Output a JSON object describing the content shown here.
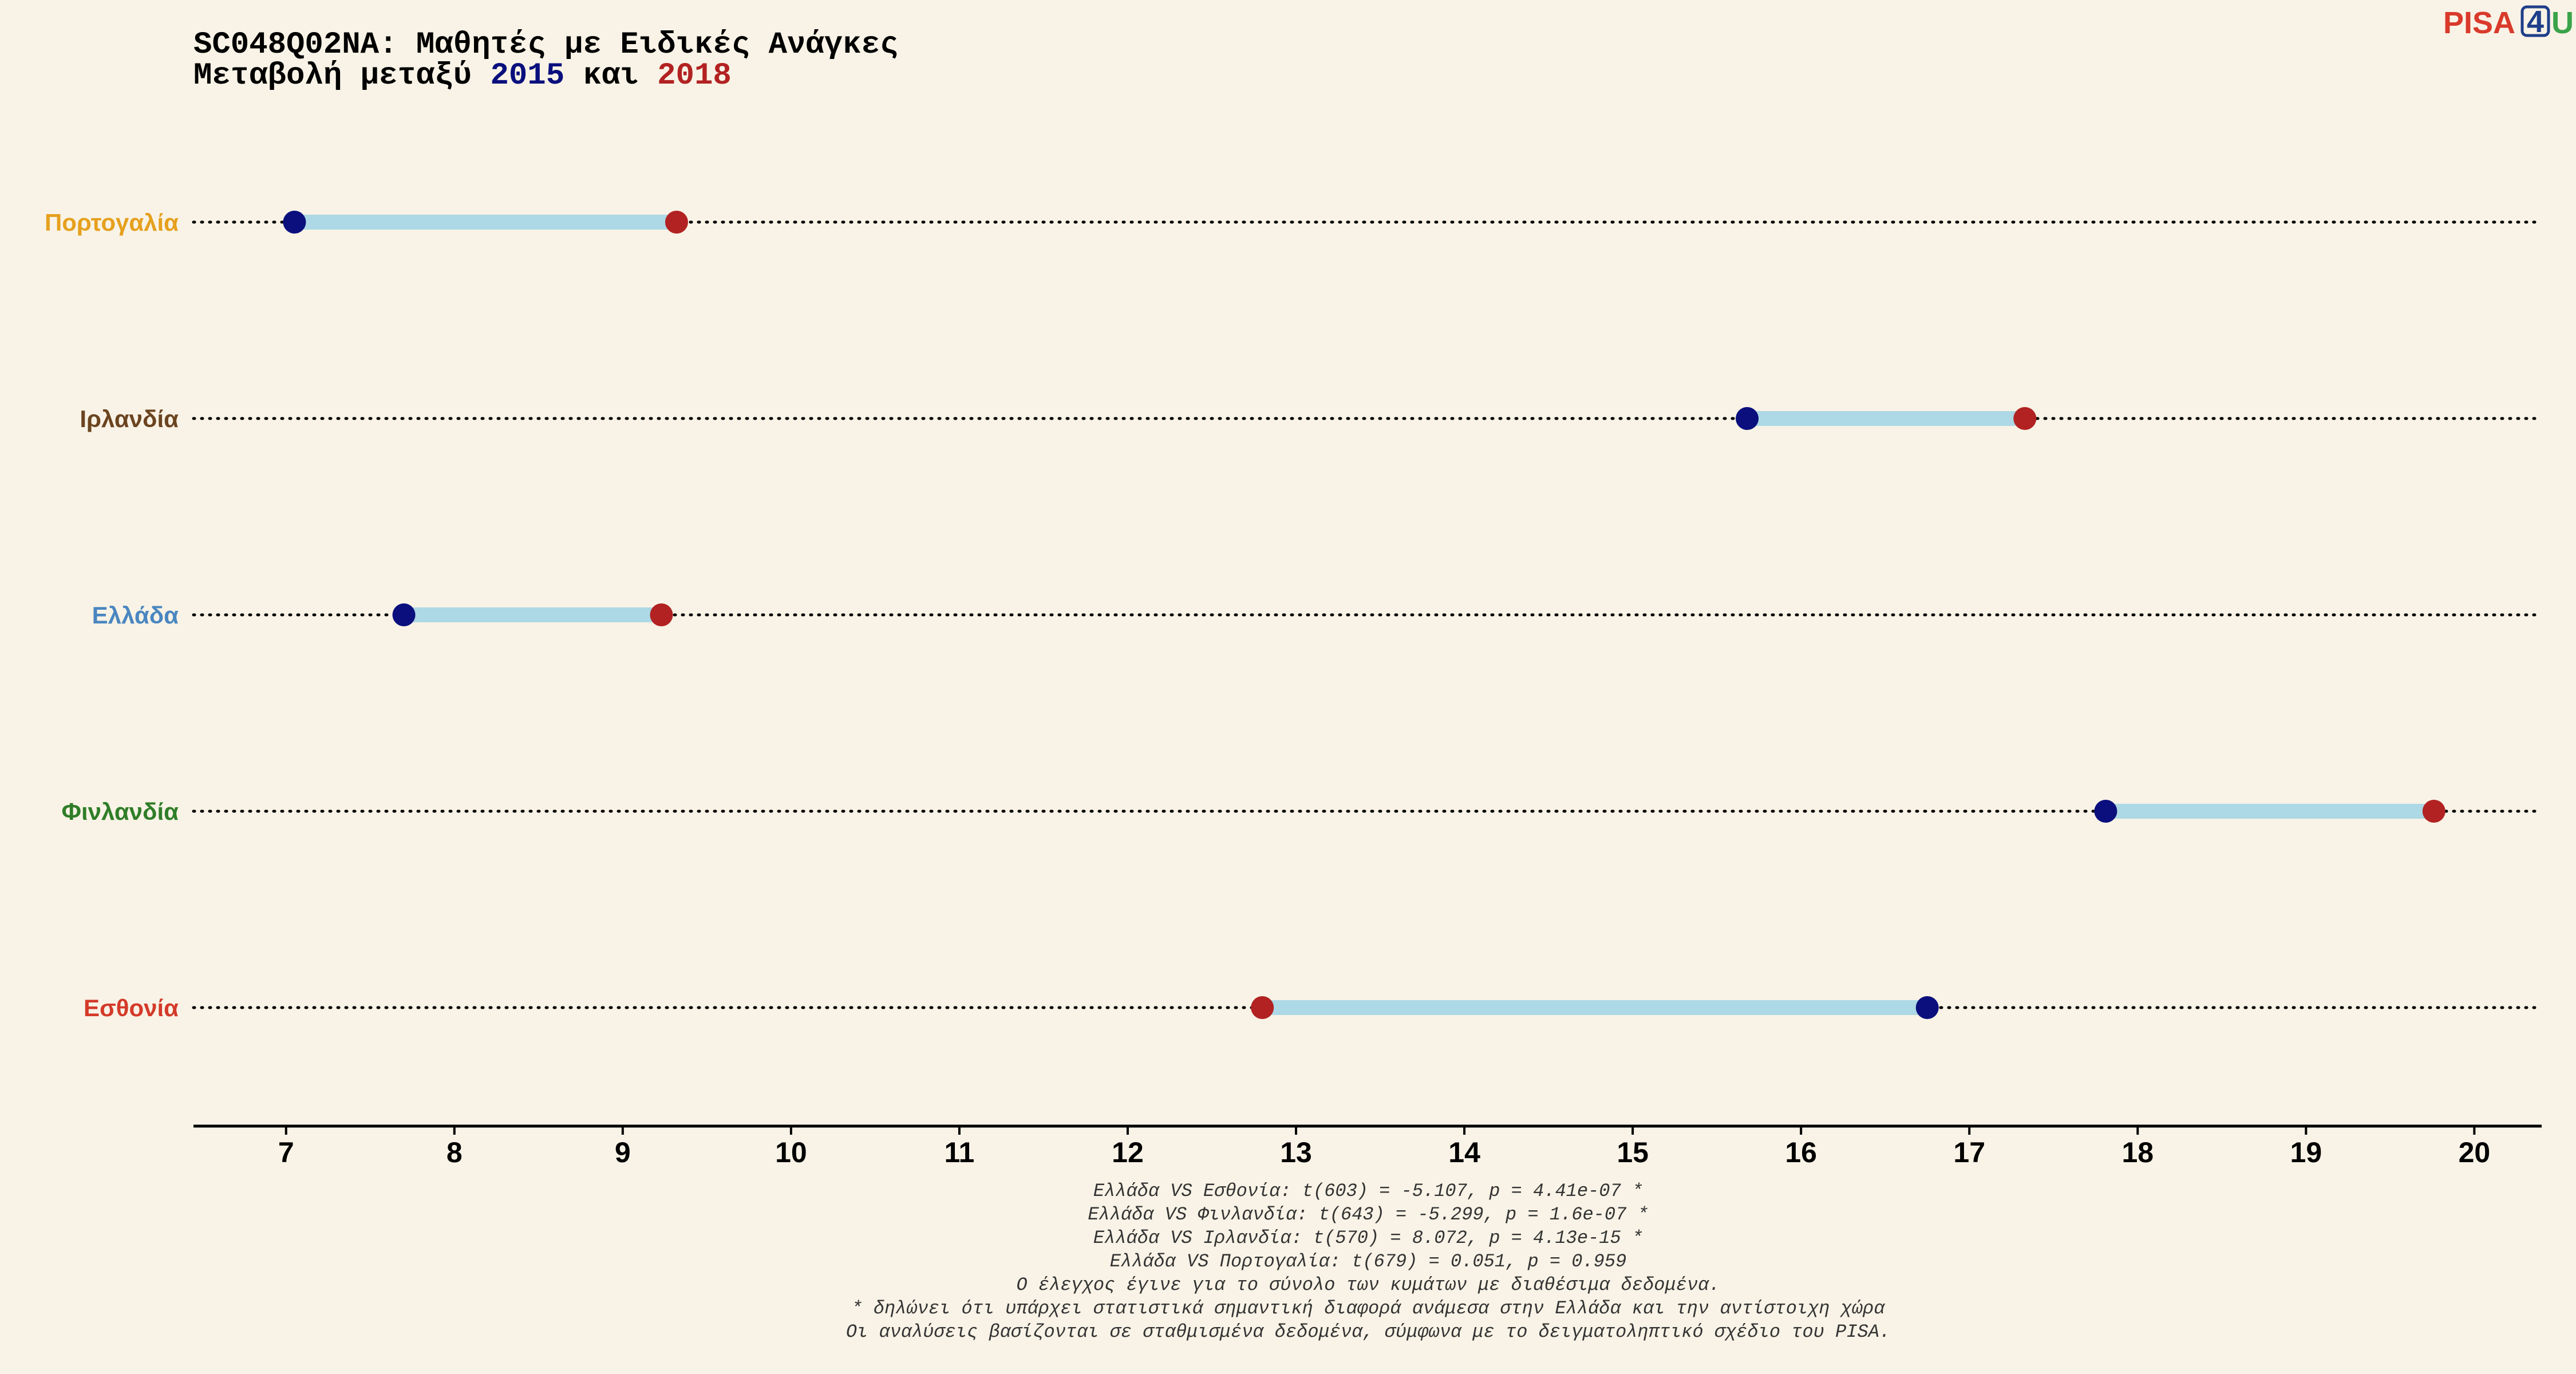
{
  "logo": {
    "part1": "PISA",
    "part2": "4",
    "part3": "U"
  },
  "chart_data": {
    "type": "dumbbell",
    "title_line1": "SC048Q02NA: Μαθητές με Ειδικές Ανάγκες",
    "title_line2_prefix": "Μεταβολή μεταξύ ",
    "year_a": "2015",
    "title_line2_middle": " και ",
    "year_b": "2018",
    "colors": {
      "year_a": "#0a0f7d",
      "year_b": "#b22222",
      "bar": "#add8e6",
      "background": "#f8f3e6"
    },
    "xlim": [
      6.45,
      20.4
    ],
    "x_ticks": [
      "7",
      "8",
      "9",
      "10",
      "11",
      "12",
      "13",
      "14",
      "15",
      "16",
      "17",
      "18",
      "19",
      "20"
    ],
    "countries": [
      {
        "name": "Πορτογαλία",
        "color": "#e6a01e",
        "v2015": 7.05,
        "v2018": 9.32
      },
      {
        "name": "Ιρλανδία",
        "color": "#6b4420",
        "v2015": 15.68,
        "v2018": 17.33
      },
      {
        "name": "Ελλάδα",
        "color": "#4a86c0",
        "v2015": 7.7,
        "v2018": 9.23
      },
      {
        "name": "Φινλανδία",
        "color": "#2f7d28",
        "v2015": 17.81,
        "v2018": 19.76
      },
      {
        "name": "Εσθονία",
        "color": "#d43a2a",
        "v2015": 16.75,
        "v2018": 12.8
      }
    ],
    "notes": [
      "Ελλάδα VS Εσθονία: t(603) = -5.107, p = 4.41e-07 *",
      "Ελλάδα VS Φινλανδία: t(643) = -5.299, p = 1.6e-07 *",
      "Ελλάδα VS Ιρλανδία: t(570) = 8.072, p = 4.13e-15 *",
      "Ελλάδα VS Πορτογαλία: t(679) = 0.051, p = 0.959",
      "Ο έλεγχος έγινε για το σύνολο των κυμάτων με διαθέσιμα δεδομένα.",
      "* δηλώνει ότι υπάρχει στατιστικά σημαντική διαφορά ανάμεσα στην Ελλάδα και την αντίστοιχη χώρα",
      "Οι αναλύσεις βασίζονται σε σταθμισμένα δεδομένα, σύμφωνα με το δειγματοληπτικό σχέδιο του PISA."
    ]
  }
}
